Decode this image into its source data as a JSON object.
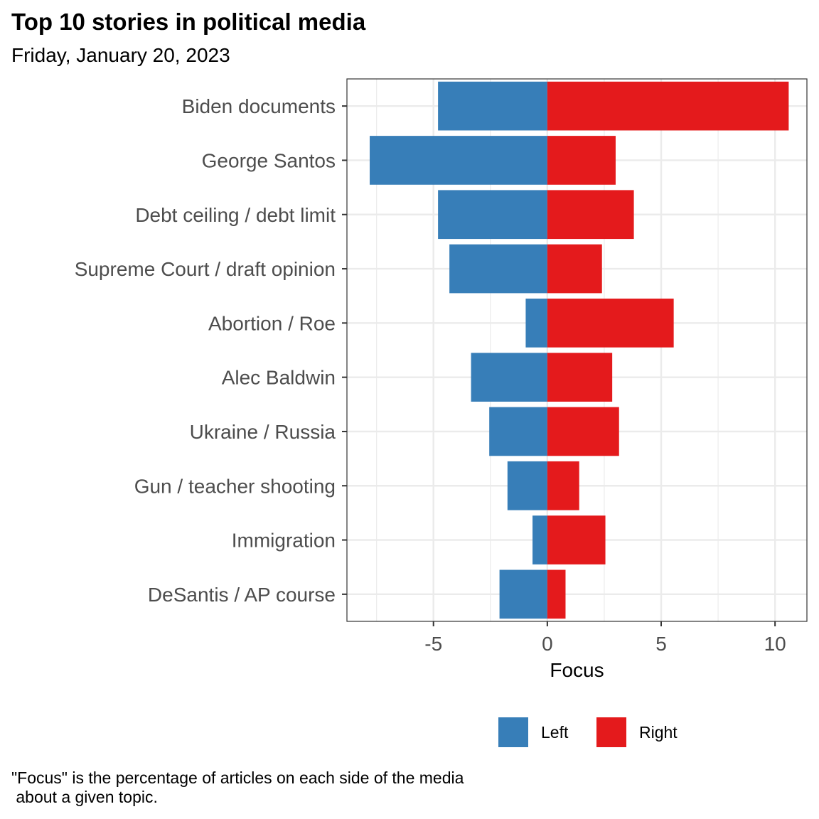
{
  "title": "Top 10 stories in political media",
  "subtitle": "Friday, January 20, 2023",
  "caption": "\"Focus\" is the percentage of articles on each side of the media\n about a given topic.",
  "colors": {
    "left": "#377EB8",
    "right": "#E41A1C",
    "grid": "#EBEBEB",
    "panel_border": "#333333"
  },
  "chart_data": {
    "type": "bar",
    "orientation": "horizontal",
    "diverging": true,
    "categories": [
      "Biden documents",
      "George Santos",
      "Debt ceiling / debt limit",
      "Supreme Court / draft opinion",
      "Abortion / Roe",
      "Alec Baldwin",
      "Ukraine / Russia",
      "Gun / teacher shooting",
      "Immigration",
      "DeSantis / AP course"
    ],
    "series": [
      {
        "name": "Left",
        "color": "#377EB8",
        "values": [
          -4.8,
          -7.8,
          -4.8,
          -4.3,
          -0.95,
          -3.35,
          -2.55,
          -1.75,
          -0.65,
          -2.1
        ]
      },
      {
        "name": "Right",
        "color": "#E41A1C",
        "values": [
          10.6,
          3.0,
          3.8,
          2.4,
          5.55,
          2.85,
          3.15,
          1.4,
          2.55,
          0.8
        ]
      }
    ],
    "xlabel": "Focus",
    "xlim": [
      -8.8,
      11.4
    ],
    "xticks": [
      -5,
      0,
      5,
      10
    ],
    "grid": true,
    "legend_position": "bottom"
  }
}
